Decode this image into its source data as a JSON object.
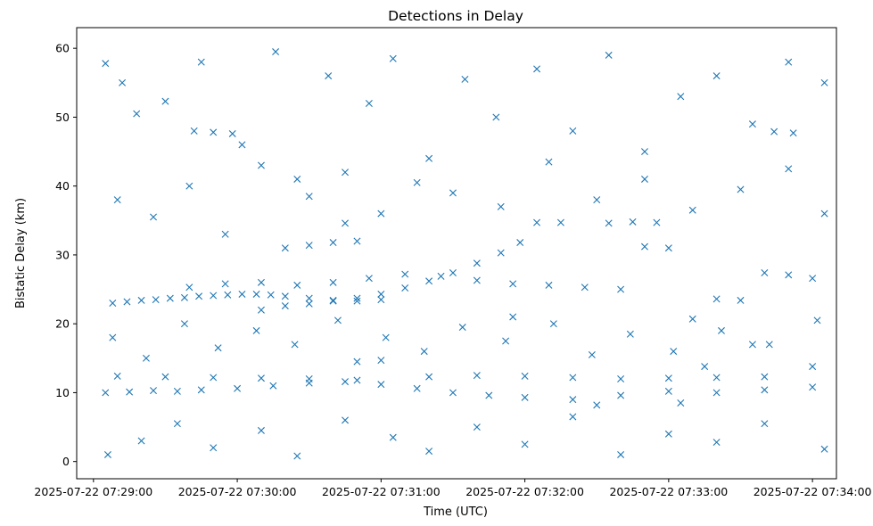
{
  "chart_data": {
    "type": "scatter",
    "title": "Detections in Delay",
    "xlabel": "Time (UTC)",
    "ylabel": "Bistatic Delay (km)",
    "marker": "x",
    "color": "#1f77b4",
    "grid": false,
    "x_ticks": [
      "2025-07-22 07:29:00",
      "2025-07-22 07:30:00",
      "2025-07-22 07:31:00",
      "2025-07-22 07:32:00",
      "2025-07-22 07:33:00",
      "2025-07-22 07:34:00"
    ],
    "y_ticks": [
      "0",
      "10",
      "20",
      "30",
      "40",
      "50",
      "60"
    ],
    "xlim": [
      "2025-07-22 07:28:53",
      "2025-07-22 07:34:10"
    ],
    "ylim": [
      -2.5,
      63
    ],
    "series": [
      {
        "points": [
          [
            "2025-07-22 07:29:08",
            23.0
          ],
          [
            "2025-07-22 07:29:14",
            23.2
          ],
          [
            "2025-07-22 07:29:20",
            23.4
          ],
          [
            "2025-07-22 07:29:26",
            23.5
          ],
          [
            "2025-07-22 07:29:32",
            23.7
          ],
          [
            "2025-07-22 07:29:38",
            23.8
          ],
          [
            "2025-07-22 07:29:44",
            24.0
          ],
          [
            "2025-07-22 07:29:50",
            24.1
          ],
          [
            "2025-07-22 07:29:56",
            24.2
          ],
          [
            "2025-07-22 07:30:02",
            24.3
          ],
          [
            "2025-07-22 07:30:08",
            24.3
          ],
          [
            "2025-07-22 07:30:14",
            24.2
          ],
          [
            "2025-07-22 07:30:20",
            24.0
          ],
          [
            "2025-07-22 07:30:30",
            23.7
          ],
          [
            "2025-07-22 07:30:40",
            23.4
          ],
          [
            "2025-07-22 07:30:50",
            23.3
          ],
          [
            "2025-07-22 07:31:00",
            23.5
          ],
          [
            "2025-07-22 07:30:10",
            22.0
          ],
          [
            "2025-07-22 07:30:20",
            22.6
          ],
          [
            "2025-07-22 07:30:30",
            22.9
          ],
          [
            "2025-07-22 07:30:40",
            23.3
          ],
          [
            "2025-07-22 07:30:50",
            23.7
          ],
          [
            "2025-07-22 07:31:00",
            24.3
          ],
          [
            "2025-07-22 07:31:10",
            25.2
          ],
          [
            "2025-07-22 07:31:20",
            26.2
          ],
          [
            "2025-07-22 07:31:30",
            27.4
          ],
          [
            "2025-07-22 07:31:40",
            28.8
          ],
          [
            "2025-07-22 07:31:50",
            30.3
          ],
          [
            "2025-07-22 07:31:58",
            31.8
          ],
          [
            "2025-07-22 07:29:40",
            25.3
          ],
          [
            "2025-07-22 07:29:55",
            25.8
          ],
          [
            "2025-07-22 07:30:10",
            26.0
          ],
          [
            "2025-07-22 07:30:25",
            25.6
          ],
          [
            "2025-07-22 07:30:40",
            26.0
          ],
          [
            "2025-07-22 07:30:55",
            26.6
          ],
          [
            "2025-07-22 07:31:10",
            27.2
          ],
          [
            "2025-07-22 07:31:25",
            26.9
          ],
          [
            "2025-07-22 07:31:40",
            26.3
          ],
          [
            "2025-07-22 07:31:55",
            25.8
          ],
          [
            "2025-07-22 07:32:10",
            25.6
          ],
          [
            "2025-07-22 07:32:25",
            25.3
          ],
          [
            "2025-07-22 07:32:40",
            25.0
          ],
          [
            "2025-07-22 07:29:05",
            10.0
          ],
          [
            "2025-07-22 07:29:15",
            10.1
          ],
          [
            "2025-07-22 07:29:25",
            10.3
          ],
          [
            "2025-07-22 07:29:35",
            10.2
          ],
          [
            "2025-07-22 07:29:45",
            10.4
          ],
          [
            "2025-07-22 07:30:00",
            10.6
          ],
          [
            "2025-07-22 07:30:15",
            11.0
          ],
          [
            "2025-07-22 07:30:30",
            11.4
          ],
          [
            "2025-07-22 07:30:45",
            11.6
          ],
          [
            "2025-07-22 07:31:00",
            11.2
          ],
          [
            "2025-07-22 07:31:15",
            10.6
          ],
          [
            "2025-07-22 07:31:30",
            10.0
          ],
          [
            "2025-07-22 07:31:45",
            9.6
          ],
          [
            "2025-07-22 07:32:00",
            9.3
          ],
          [
            "2025-07-22 07:32:20",
            9.0
          ],
          [
            "2025-07-22 07:32:40",
            9.6
          ],
          [
            "2025-07-22 07:33:00",
            10.2
          ],
          [
            "2025-07-22 07:33:20",
            10.0
          ],
          [
            "2025-07-22 07:33:40",
            10.4
          ],
          [
            "2025-07-22 07:34:00",
            10.8
          ],
          [
            "2025-07-22 07:29:10",
            12.4
          ],
          [
            "2025-07-22 07:29:30",
            12.3
          ],
          [
            "2025-07-22 07:29:50",
            12.2
          ],
          [
            "2025-07-22 07:30:10",
            12.1
          ],
          [
            "2025-07-22 07:30:30",
            12.0
          ],
          [
            "2025-07-22 07:30:50",
            11.8
          ],
          [
            "2025-07-22 07:31:20",
            12.3
          ],
          [
            "2025-07-22 07:31:40",
            12.5
          ],
          [
            "2025-07-22 07:32:00",
            12.4
          ],
          [
            "2025-07-22 07:32:20",
            12.2
          ],
          [
            "2025-07-22 07:32:40",
            12.0
          ],
          [
            "2025-07-22 07:33:00",
            12.1
          ],
          [
            "2025-07-22 07:33:20",
            12.2
          ],
          [
            "2025-07-22 07:33:40",
            12.3
          ],
          [
            "2025-07-22 07:34:00",
            13.8
          ],
          [
            "2025-07-22 07:29:42",
            48.0
          ],
          [
            "2025-07-22 07:29:50",
            47.8
          ],
          [
            "2025-07-22 07:29:58",
            47.6
          ],
          [
            "2025-07-22 07:33:44",
            47.9
          ],
          [
            "2025-07-22 07:33:52",
            47.7
          ],
          [
            "2025-07-22 07:30:20",
            31.0
          ],
          [
            "2025-07-22 07:30:30",
            31.4
          ],
          [
            "2025-07-22 07:30:40",
            31.8
          ],
          [
            "2025-07-22 07:30:50",
            32.0
          ],
          [
            "2025-07-22 07:30:45",
            34.6
          ],
          [
            "2025-07-22 07:32:05",
            34.7
          ],
          [
            "2025-07-22 07:32:15",
            34.7
          ],
          [
            "2025-07-22 07:32:35",
            34.6
          ],
          [
            "2025-07-22 07:32:45",
            34.8
          ],
          [
            "2025-07-22 07:32:55",
            34.7
          ],
          [
            "2025-07-22 07:32:50",
            31.2
          ],
          [
            "2025-07-22 07:33:00",
            31.0
          ],
          [
            "2025-07-22 07:33:40",
            27.4
          ],
          [
            "2025-07-22 07:33:50",
            27.1
          ],
          [
            "2025-07-22 07:34:00",
            26.6
          ],
          [
            "2025-07-22 07:33:20",
            23.6
          ],
          [
            "2025-07-22 07:33:30",
            23.4
          ],
          [
            "2025-07-22 07:33:10",
            20.7
          ],
          [
            "2025-07-22 07:31:55",
            21.0
          ],
          [
            "2025-07-22 07:31:00",
            14.7
          ],
          [
            "2025-07-22 07:30:50",
            14.5
          ],
          [
            "2025-07-22 07:33:35",
            17.0
          ],
          [
            "2025-07-22 07:33:15",
            13.8
          ],
          [
            "2025-07-22 07:32:30",
            8.2
          ],
          [
            "2025-07-22 07:33:05",
            8.5
          ],
          [
            "2025-07-22 07:29:05",
            57.8
          ],
          [
            "2025-07-22 07:29:12",
            55.0
          ],
          [
            "2025-07-22 07:29:18",
            50.5
          ],
          [
            "2025-07-22 07:29:30",
            52.3
          ],
          [
            "2025-07-22 07:29:45",
            58.0
          ],
          [
            "2025-07-22 07:30:02",
            46.0
          ],
          [
            "2025-07-22 07:30:16",
            59.5
          ],
          [
            "2025-07-22 07:30:25",
            41.0
          ],
          [
            "2025-07-22 07:30:38",
            56.0
          ],
          [
            "2025-07-22 07:30:55",
            52.0
          ],
          [
            "2025-07-22 07:31:05",
            58.5
          ],
          [
            "2025-07-22 07:31:20",
            44.0
          ],
          [
            "2025-07-22 07:31:35",
            55.5
          ],
          [
            "2025-07-22 07:31:48",
            50.0
          ],
          [
            "2025-07-22 07:32:05",
            57.0
          ],
          [
            "2025-07-22 07:32:20",
            48.0
          ],
          [
            "2025-07-22 07:32:35",
            59.0
          ],
          [
            "2025-07-22 07:32:50",
            45.0
          ],
          [
            "2025-07-22 07:33:05",
            53.0
          ],
          [
            "2025-07-22 07:33:20",
            56.0
          ],
          [
            "2025-07-22 07:33:35",
            49.0
          ],
          [
            "2025-07-22 07:33:50",
            58.0
          ],
          [
            "2025-07-22 07:34:05",
            55.0
          ],
          [
            "2025-07-22 07:29:10",
            38.0
          ],
          [
            "2025-07-22 07:29:25",
            35.5
          ],
          [
            "2025-07-22 07:29:40",
            40.0
          ],
          [
            "2025-07-22 07:29:55",
            33.0
          ],
          [
            "2025-07-22 07:30:10",
            43.0
          ],
          [
            "2025-07-22 07:30:30",
            38.5
          ],
          [
            "2025-07-22 07:30:45",
            42.0
          ],
          [
            "2025-07-22 07:31:00",
            36.0
          ],
          [
            "2025-07-22 07:31:15",
            40.5
          ],
          [
            "2025-07-22 07:31:30",
            39.0
          ],
          [
            "2025-07-22 07:31:50",
            37.0
          ],
          [
            "2025-07-22 07:32:10",
            43.5
          ],
          [
            "2025-07-22 07:32:30",
            38.0
          ],
          [
            "2025-07-22 07:32:50",
            41.0
          ],
          [
            "2025-07-22 07:33:10",
            36.5
          ],
          [
            "2025-07-22 07:33:30",
            39.5
          ],
          [
            "2025-07-22 07:33:50",
            42.5
          ],
          [
            "2025-07-22 07:34:05",
            36.0
          ],
          [
            "2025-07-22 07:29:08",
            18.0
          ],
          [
            "2025-07-22 07:29:22",
            15.0
          ],
          [
            "2025-07-22 07:29:38",
            20.0
          ],
          [
            "2025-07-22 07:29:52",
            16.5
          ],
          [
            "2025-07-22 07:30:08",
            19.0
          ],
          [
            "2025-07-22 07:30:24",
            17.0
          ],
          [
            "2025-07-22 07:30:42",
            20.5
          ],
          [
            "2025-07-22 07:31:02",
            18.0
          ],
          [
            "2025-07-22 07:31:18",
            16.0
          ],
          [
            "2025-07-22 07:31:34",
            19.5
          ],
          [
            "2025-07-22 07:31:52",
            17.5
          ],
          [
            "2025-07-22 07:32:12",
            20.0
          ],
          [
            "2025-07-22 07:32:28",
            15.5
          ],
          [
            "2025-07-22 07:32:44",
            18.5
          ],
          [
            "2025-07-22 07:33:02",
            16.0
          ],
          [
            "2025-07-22 07:33:22",
            19.0
          ],
          [
            "2025-07-22 07:33:42",
            17.0
          ],
          [
            "2025-07-22 07:34:02",
            20.5
          ],
          [
            "2025-07-22 07:29:06",
            1.0
          ],
          [
            "2025-07-22 07:29:20",
            3.0
          ],
          [
            "2025-07-22 07:29:35",
            5.5
          ],
          [
            "2025-07-22 07:29:50",
            2.0
          ],
          [
            "2025-07-22 07:30:10",
            4.5
          ],
          [
            "2025-07-22 07:30:25",
            0.8
          ],
          [
            "2025-07-22 07:30:45",
            6.0
          ],
          [
            "2025-07-22 07:31:05",
            3.5
          ],
          [
            "2025-07-22 07:31:20",
            1.5
          ],
          [
            "2025-07-22 07:31:40",
            5.0
          ],
          [
            "2025-07-22 07:32:00",
            2.5
          ],
          [
            "2025-07-22 07:32:20",
            6.5
          ],
          [
            "2025-07-22 07:32:40",
            1.0
          ],
          [
            "2025-07-22 07:33:00",
            4.0
          ],
          [
            "2025-07-22 07:33:20",
            2.8
          ],
          [
            "2025-07-22 07:33:40",
            5.5
          ],
          [
            "2025-07-22 07:34:05",
            1.8
          ]
        ]
      }
    ]
  }
}
